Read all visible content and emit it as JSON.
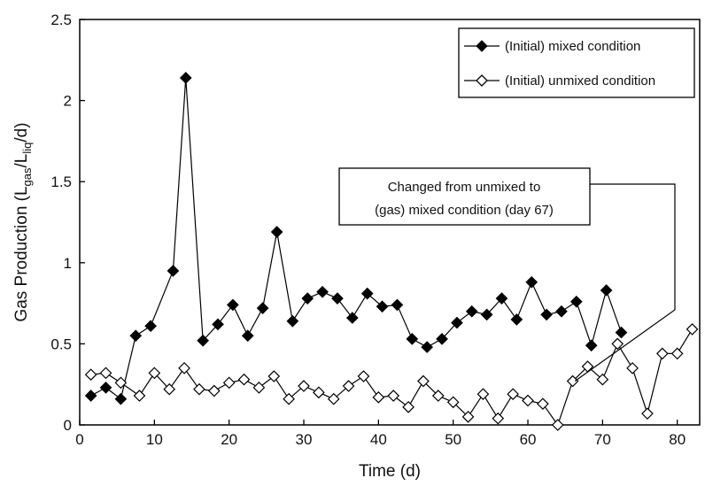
{
  "chart_data": {
    "type": "line",
    "xlabel": "Time (d)",
    "ylabel_main": "Gas Production (L",
    "ylabel_sub1": "gas",
    "ylabel_mid": "/L",
    "ylabel_sub2": "liq",
    "ylabel_end": "/d)",
    "xlim": [
      0,
      83
    ],
    "ylim": [
      0,
      2.5
    ],
    "xticks": [
      0,
      10,
      20,
      30,
      40,
      50,
      60,
      70,
      80
    ],
    "yticks": [
      0,
      0.5,
      1,
      1.5,
      2,
      2.5
    ],
    "ytick_labels": [
      "0",
      "0.5",
      "1",
      "1.5",
      "2",
      "2.5"
    ],
    "grid": false,
    "legend_position": "top-right",
    "series": [
      {
        "name": "(Initial) mixed condition",
        "marker": "filled-diamond",
        "color": "#000000",
        "x": [
          1.5,
          3.5,
          5.5,
          7.5,
          9.5,
          12.5,
          14.2,
          16.5,
          18.5,
          20.5,
          22.5,
          24.5,
          26.4,
          28.5,
          30.5,
          32.5,
          34.5,
          36.5,
          38.5,
          40.5,
          42.5,
          44.5,
          46.5,
          48.5,
          50.5,
          52.5,
          54.5,
          56.5,
          58.5,
          60.5,
          62.5,
          64.5,
          66.5,
          68.5,
          70.5,
          72.5
        ],
        "y": [
          0.18,
          0.23,
          0.16,
          0.55,
          0.61,
          0.95,
          2.14,
          0.52,
          0.62,
          0.74,
          0.55,
          0.72,
          1.19,
          0.64,
          0.78,
          0.82,
          0.78,
          0.66,
          0.81,
          0.73,
          0.74,
          0.53,
          0.48,
          0.53,
          0.63,
          0.7,
          0.68,
          0.78,
          0.65,
          0.88,
          0.68,
          0.7,
          0.76,
          0.49,
          0.83,
          0.57
        ]
      },
      {
        "name": "(Initial) unmixed condition",
        "marker": "open-diamond",
        "color": "#000000",
        "x": [
          1.5,
          3.5,
          5.5,
          8,
          10,
          12,
          14,
          16,
          18,
          20,
          22,
          24,
          26,
          28,
          30,
          32,
          34,
          36,
          38,
          40,
          42,
          44,
          46,
          48,
          50,
          52,
          54,
          56,
          58,
          60,
          62,
          64,
          66,
          68,
          70,
          72,
          74,
          76,
          78,
          80,
          82
        ],
        "y": [
          0.31,
          0.32,
          0.26,
          0.18,
          0.32,
          0.22,
          0.35,
          0.22,
          0.21,
          0.26,
          0.28,
          0.23,
          0.3,
          0.16,
          0.24,
          0.2,
          0.16,
          0.24,
          0.3,
          0.17,
          0.18,
          0.11,
          0.27,
          0.18,
          0.14,
          0.05,
          0.19,
          0.04,
          0.19,
          0.15,
          0.13,
          0.0,
          0.27,
          0.36,
          0.28,
          0.5,
          0.35,
          0.07,
          0.44,
          0.44,
          0.59
        ]
      }
    ],
    "annotation": {
      "line1": "Changed from unmixed to",
      "line2": "(gas) mixed condition (day 67)",
      "target_x": 66.3,
      "target_y": 0.27
    }
  }
}
